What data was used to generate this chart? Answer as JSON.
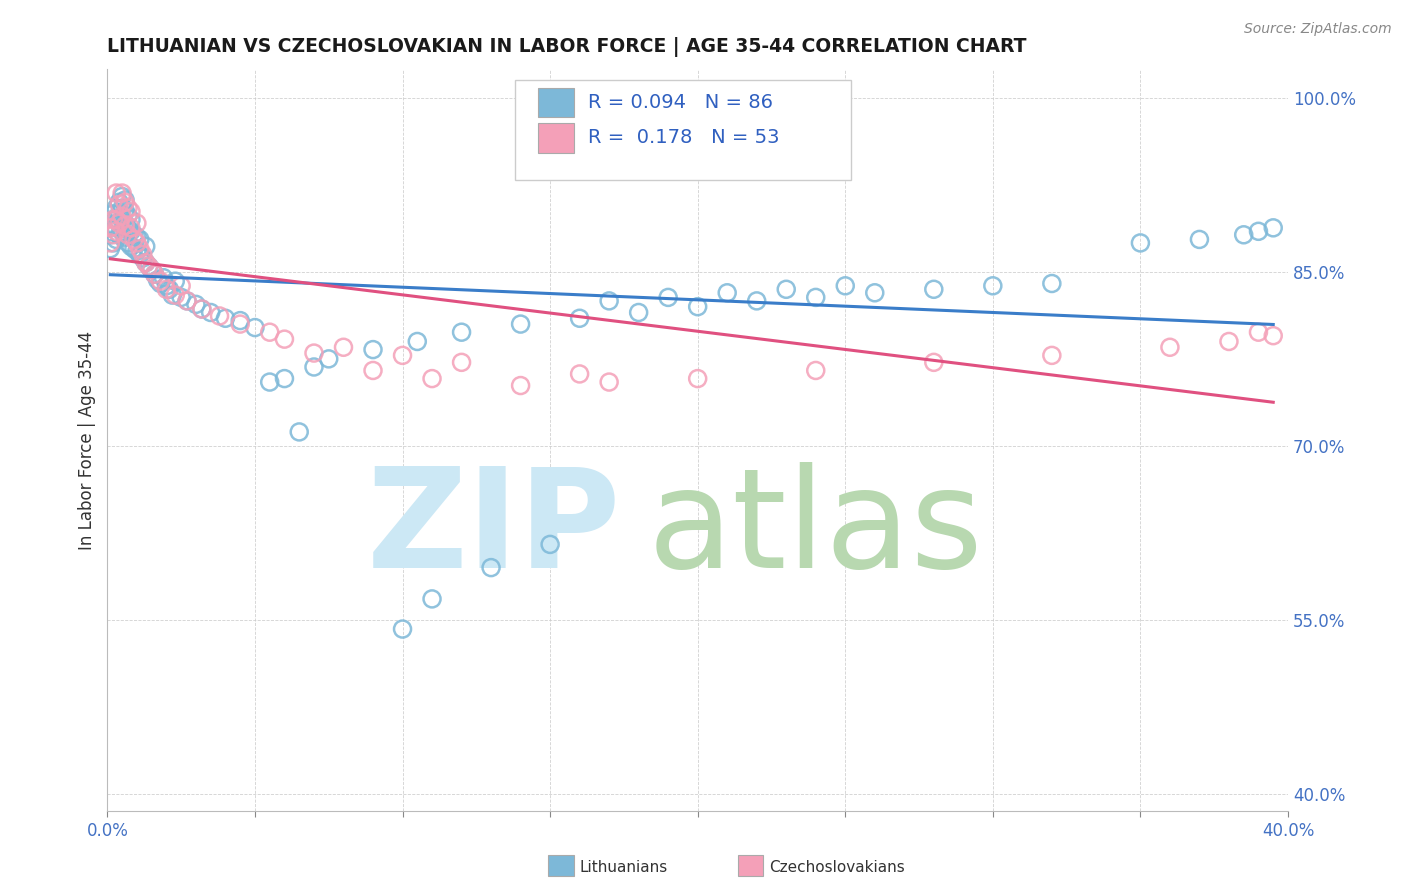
{
  "title": "LITHUANIAN VS CZECHOSLOVAKIAN IN LABOR FORCE | AGE 35-44 CORRELATION CHART",
  "source_text": "Source: ZipAtlas.com",
  "ylabel": "In Labor Force | Age 35-44",
  "xlim": [
    0.0,
    0.4
  ],
  "ylim": [
    0.385,
    1.025
  ],
  "ytick_positions": [
    0.4,
    0.55,
    0.7,
    0.85,
    1.0
  ],
  "ytick_labels": [
    "40.0%",
    "55.0%",
    "70.0%",
    "85.0%",
    "100.0%"
  ],
  "blue_color": "#7db8d8",
  "pink_color": "#f4a0b8",
  "blue_line_color": "#3a7dc9",
  "pink_line_color": "#e05080",
  "legend_blue_R": "0.094",
  "legend_blue_N": "86",
  "legend_pink_R": "0.178",
  "legend_pink_N": "53",
  "blue_scatter_x": [
    0.001,
    0.001,
    0.002,
    0.002,
    0.002,
    0.003,
    0.003,
    0.003,
    0.003,
    0.004,
    0.004,
    0.004,
    0.004,
    0.005,
    0.005,
    0.005,
    0.005,
    0.006,
    0.006,
    0.006,
    0.006,
    0.007,
    0.007,
    0.007,
    0.008,
    0.008,
    0.008,
    0.009,
    0.009,
    0.01,
    0.01,
    0.011,
    0.011,
    0.012,
    0.013,
    0.013,
    0.014,
    0.015,
    0.016,
    0.017,
    0.018,
    0.019,
    0.02,
    0.021,
    0.022,
    0.023,
    0.025,
    0.027,
    0.03,
    0.032,
    0.035,
    0.04,
    0.045,
    0.05,
    0.055,
    0.065,
    0.075,
    0.09,
    0.105,
    0.12,
    0.14,
    0.16,
    0.18,
    0.2,
    0.22,
    0.24,
    0.26,
    0.28,
    0.3,
    0.32,
    0.1,
    0.11,
    0.13,
    0.15,
    0.17,
    0.19,
    0.21,
    0.23,
    0.25,
    0.35,
    0.37,
    0.385,
    0.39,
    0.395,
    0.06,
    0.07
  ],
  "blue_scatter_y": [
    0.87,
    0.882,
    0.875,
    0.89,
    0.9,
    0.878,
    0.888,
    0.895,
    0.905,
    0.882,
    0.893,
    0.9,
    0.91,
    0.885,
    0.895,
    0.905,
    0.915,
    0.88,
    0.892,
    0.903,
    0.912,
    0.875,
    0.887,
    0.898,
    0.872,
    0.885,
    0.895,
    0.87,
    0.882,
    0.868,
    0.88,
    0.865,
    0.878,
    0.862,
    0.858,
    0.872,
    0.855,
    0.852,
    0.848,
    0.843,
    0.84,
    0.845,
    0.838,
    0.835,
    0.83,
    0.842,
    0.828,
    0.825,
    0.822,
    0.818,
    0.815,
    0.81,
    0.808,
    0.802,
    0.755,
    0.712,
    0.775,
    0.783,
    0.79,
    0.798,
    0.805,
    0.81,
    0.815,
    0.82,
    0.825,
    0.828,
    0.832,
    0.835,
    0.838,
    0.84,
    0.542,
    0.568,
    0.595,
    0.615,
    0.825,
    0.828,
    0.832,
    0.835,
    0.838,
    0.875,
    0.878,
    0.882,
    0.885,
    0.888,
    0.758,
    0.768
  ],
  "pink_scatter_x": [
    0.001,
    0.001,
    0.002,
    0.002,
    0.003,
    0.003,
    0.003,
    0.004,
    0.004,
    0.005,
    0.005,
    0.006,
    0.006,
    0.007,
    0.007,
    0.008,
    0.008,
    0.009,
    0.01,
    0.01,
    0.011,
    0.012,
    0.013,
    0.014,
    0.016,
    0.018,
    0.02,
    0.023,
    0.027,
    0.032,
    0.038,
    0.045,
    0.055,
    0.07,
    0.09,
    0.11,
    0.14,
    0.17,
    0.2,
    0.24,
    0.28,
    0.32,
    0.36,
    0.38,
    0.395,
    0.025,
    0.015,
    0.06,
    0.08,
    0.1,
    0.12,
    0.16,
    0.39
  ],
  "pink_scatter_y": [
    0.875,
    0.888,
    0.882,
    0.895,
    0.885,
    0.895,
    0.918,
    0.892,
    0.908,
    0.898,
    0.918,
    0.89,
    0.91,
    0.882,
    0.905,
    0.888,
    0.902,
    0.878,
    0.875,
    0.892,
    0.87,
    0.865,
    0.858,
    0.855,
    0.848,
    0.842,
    0.835,
    0.83,
    0.825,
    0.818,
    0.812,
    0.805,
    0.798,
    0.78,
    0.765,
    0.758,
    0.752,
    0.755,
    0.758,
    0.765,
    0.772,
    0.778,
    0.785,
    0.79,
    0.795,
    0.838,
    0.852,
    0.792,
    0.785,
    0.778,
    0.772,
    0.762,
    0.798
  ]
}
